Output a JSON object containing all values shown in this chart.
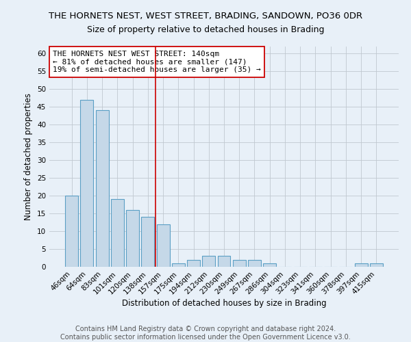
{
  "title": "THE HORNETS NEST, WEST STREET, BRADING, SANDOWN, PO36 0DR",
  "subtitle": "Size of property relative to detached houses in Brading",
  "xlabel": "Distribution of detached houses by size in Brading",
  "ylabel": "Number of detached properties",
  "categories": [
    "46sqm",
    "64sqm",
    "83sqm",
    "101sqm",
    "120sqm",
    "138sqm",
    "157sqm",
    "175sqm",
    "194sqm",
    "212sqm",
    "230sqm",
    "249sqm",
    "267sqm",
    "286sqm",
    "304sqm",
    "323sqm",
    "341sqm",
    "360sqm",
    "378sqm",
    "397sqm",
    "415sqm"
  ],
  "values": [
    20,
    47,
    44,
    19,
    16,
    14,
    12,
    1,
    2,
    3,
    3,
    2,
    2,
    1,
    0,
    0,
    0,
    0,
    0,
    1,
    1
  ],
  "bar_color": "#c5d8e8",
  "bar_edge_color": "#5a9fc4",
  "grid_color": "#c0c8d0",
  "background_color": "#e8f0f8",
  "vline_x": 5.5,
  "vline_color": "#cc0000",
  "annotation_text": "THE HORNETS NEST WEST STREET: 140sqm\n← 81% of detached houses are smaller (147)\n19% of semi-detached houses are larger (35) →",
  "annotation_box_color": "#ffffff",
  "annotation_box_edge": "#cc0000",
  "ylim": [
    0,
    62
  ],
  "yticks": [
    0,
    5,
    10,
    15,
    20,
    25,
    30,
    35,
    40,
    45,
    50,
    55,
    60
  ],
  "footer_text": "Contains HM Land Registry data © Crown copyright and database right 2024.\nContains public sector information licensed under the Open Government Licence v3.0.",
  "title_fontsize": 9.5,
  "subtitle_fontsize": 9,
  "xlabel_fontsize": 8.5,
  "ylabel_fontsize": 8.5,
  "footer_fontsize": 7,
  "tick_fontsize": 7.5,
  "annotation_fontsize": 8
}
